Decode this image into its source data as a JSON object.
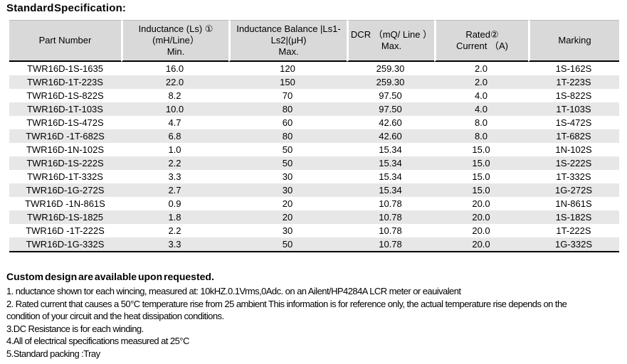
{
  "title": "Standard Specification:",
  "table": {
    "columns": [
      {
        "lines": [
          "Part Number"
        ]
      },
      {
        "lines": [
          "Inductance (Ls) ①",
          "(mH/Line）",
          "Min."
        ]
      },
      {
        "lines": [
          "Inductance Balance |Ls1-",
          "Ls2|(μH)",
          "Max."
        ]
      },
      {
        "lines": [
          "DCR （mQ/ Line ）",
          "Max."
        ]
      },
      {
        "lines": [
          "Rated②",
          "Current （A)"
        ]
      },
      {
        "lines": [
          "Marking"
        ]
      }
    ],
    "rows": [
      [
        "TWR16D-1S-1635",
        "16.0",
        "120",
        "259.30",
        "2.0",
        "1S-162S"
      ],
      [
        "TWR16D-1T-223S",
        "22.0",
        "150",
        "259.30",
        "2.0",
        "1T-223S"
      ],
      [
        "TWR16D-1S-822S",
        "8.2",
        "70",
        "97.50",
        "4.0",
        "1S-822S"
      ],
      [
        "TWR16D-1T-103S",
        "10.0",
        "80",
        "97.50",
        "4.0",
        "1T-103S"
      ],
      [
        "TWR16D-1S-472S",
        "4.7",
        "60",
        "42.60",
        "8.0",
        "1S-472S"
      ],
      [
        "TWR16D -1T-682S",
        "6.8",
        "80",
        "42.60",
        "8.0",
        "1T-682S"
      ],
      [
        "TWR16D-1N-102S",
        "1.0",
        "50",
        "15.34",
        "15.0",
        "1N-102S"
      ],
      [
        "TWR16D-1S-222S",
        "2.2",
        "50",
        "15.34",
        "15.0",
        "1S-222S"
      ],
      [
        "TWR16D-1T-332S",
        "3.3",
        "30",
        "15.34",
        "15.0",
        "1T-332S"
      ],
      [
        "TWR16D-1G-272S",
        "2.7",
        "30",
        "15.34",
        "15.0",
        "1G-272S"
      ],
      [
        "TWR16D -1N-861S",
        "0.9",
        "20",
        "10.78",
        "20.0",
        "1N-861S"
      ],
      [
        "TWR16D-1S-1825",
        "1.8",
        "20",
        "10.78",
        "20.0",
        "1S-182S"
      ],
      [
        "TWR16D -1T-222S",
        "2.2",
        "30",
        "10.78",
        "20.0",
        "1T-222S"
      ],
      [
        "TWR16D-1G-332S",
        "3.3",
        "50",
        "10.78",
        "20.0",
        "1G-332S"
      ]
    ]
  },
  "notes": {
    "heading": "Custom design are available upon requested.",
    "items": [
      "1. nductance shown tor each wincing, measured at: 10kHZ.0.1Vrms,0Adc. on an Ailent/HP4284A LCR meter or eauivalent",
      "2. Rated current that causes a 50°C temperature rise from 25 ambient This information is for reference only, the actual temperature rise depends on the condition of your circuit and the heat dissipation conditions.",
      "3.DC Resistance is for each winding.",
      "4.All of electrical specifications measured at 25°C",
      "5.Standard packing :Tray"
    ]
  },
  "colors": {
    "header_bg": "#d9d9d9",
    "stripe_bg": "#e7e7e7",
    "border": "#000000"
  }
}
